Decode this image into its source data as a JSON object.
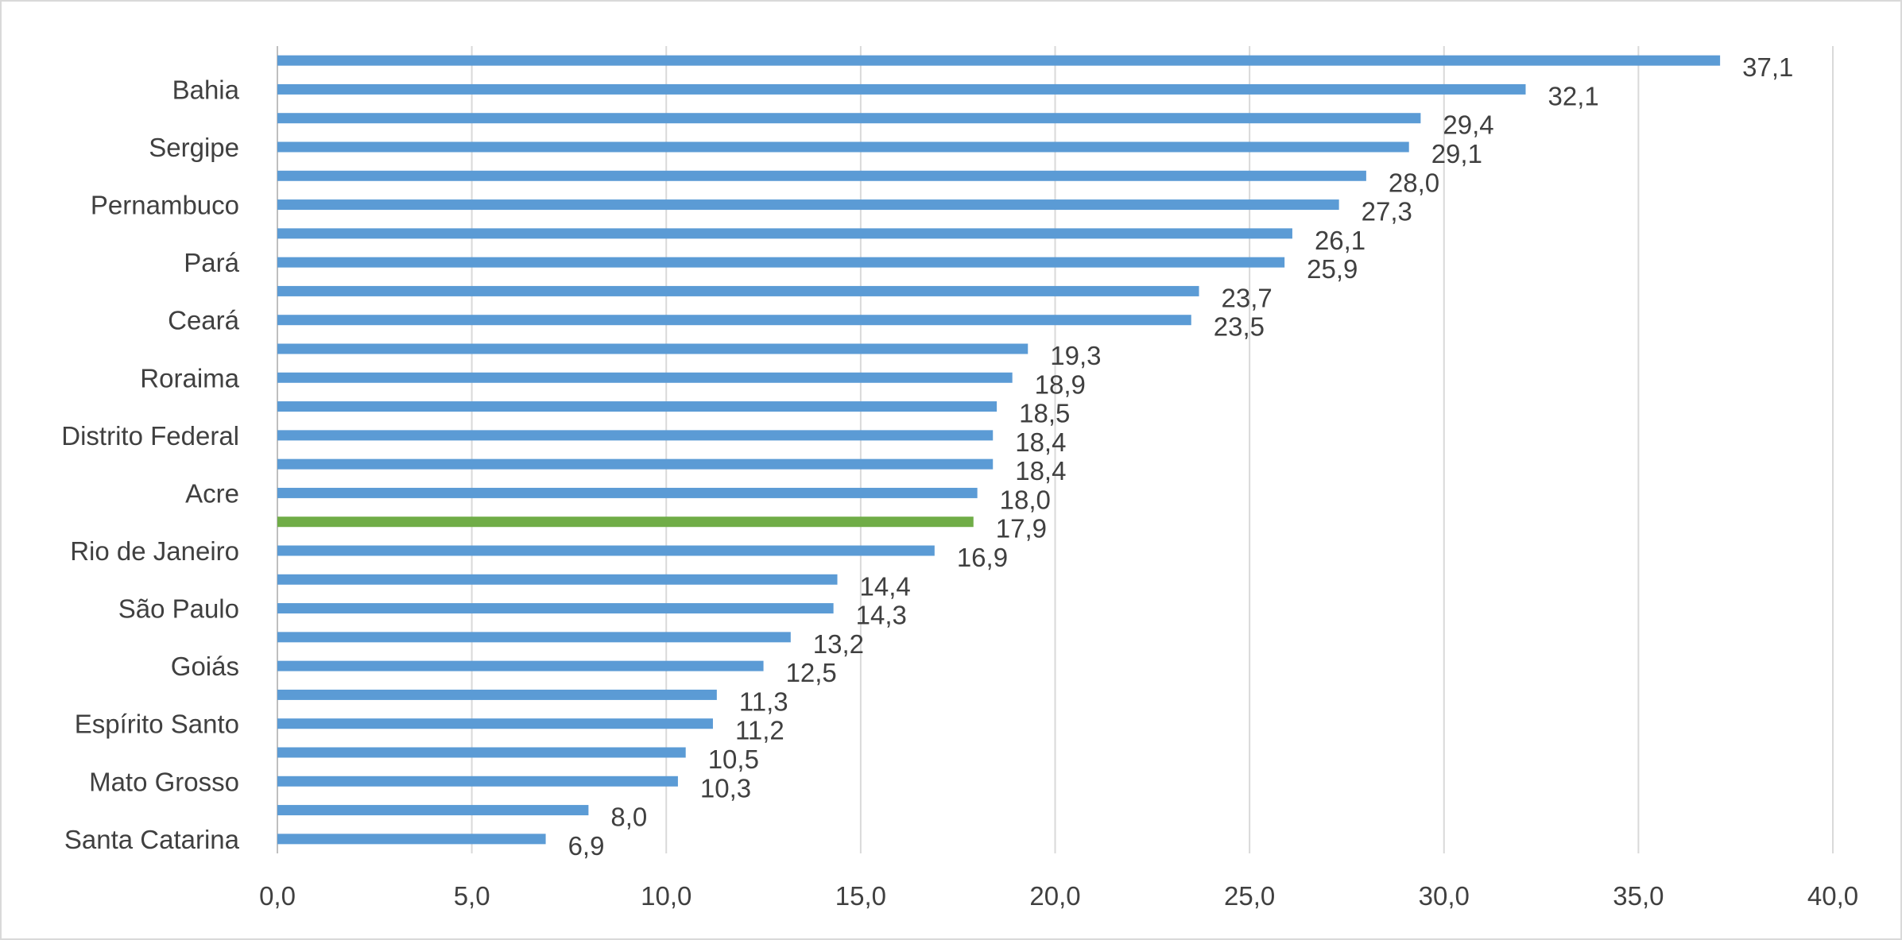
{
  "chart_data": {
    "type": "bar",
    "orientation": "horizontal",
    "title": "",
    "xlabel": "",
    "ylabel": "",
    "xlim": [
      0,
      40
    ],
    "x_ticks": [
      "0,0",
      "5,0",
      "10,0",
      "15,0",
      "20,0",
      "25,0",
      "30,0",
      "35,0",
      "40,0"
    ],
    "grid": true,
    "legend": "none",
    "colors": {
      "bar": "#5b9bd5",
      "highlight": "#70ad47",
      "grid": "#d9d9d9",
      "text": "#404040"
    },
    "categories": [
      "",
      "Bahia",
      "",
      "Sergipe",
      "",
      "Pernambuco",
      "",
      "Pará",
      "",
      "Ceará",
      "",
      "Roraima",
      "",
      "Distrito Federal",
      "",
      "Acre",
      "",
      "Rio de Janeiro",
      "",
      "São Paulo",
      "",
      "Goiás",
      "",
      "Espírito Santo",
      "",
      "Mato Grosso",
      "",
      "Santa Catarina"
    ],
    "values": [
      37.1,
      32.1,
      29.4,
      29.1,
      28.0,
      27.3,
      26.1,
      25.9,
      23.7,
      23.5,
      19.3,
      18.9,
      18.5,
      18.4,
      18.4,
      18.0,
      17.9,
      16.9,
      14.4,
      14.3,
      13.2,
      12.5,
      11.3,
      11.2,
      10.5,
      10.3,
      8.0,
      6.9
    ],
    "data_labels": [
      "37,1",
      "32,1",
      "29,4",
      "29,1",
      "28,0",
      "27,3",
      "26,1",
      "25,9",
      "23,7",
      "23,5",
      "19,3",
      "18,9",
      "18,5",
      "18,4",
      "18,4",
      "18,0",
      "17,9",
      "16,9",
      "14,4",
      "14,3",
      "13,2",
      "12,5",
      "11,3",
      "11,2",
      "10,5",
      "10,3",
      "8,0",
      "6,9"
    ],
    "highlight_index": 16
  }
}
